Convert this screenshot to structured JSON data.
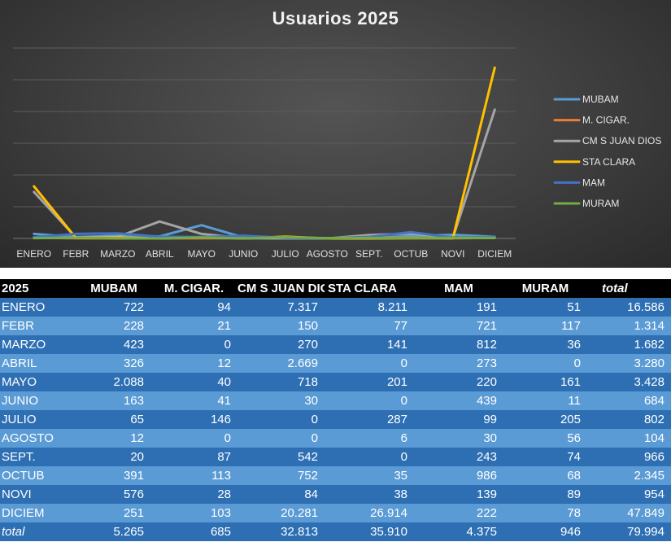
{
  "chart_data": {
    "type": "line",
    "title": "Usuarios 2025",
    "categories": [
      "ENERO",
      "FEBR",
      "MARZO",
      "ABRIL",
      "MAYO",
      "JUNIO",
      "JULIO",
      "AGOSTO",
      "SEPT.",
      "OCTUB",
      "NOVI",
      "DICIEM"
    ],
    "series": [
      {
        "name": "MUBAM",
        "color": "#5b9bd5",
        "values": [
          722,
          228,
          423,
          326,
          2088,
          163,
          65,
          12,
          20,
          391,
          576,
          251
        ]
      },
      {
        "name": "M. CIGAR.",
        "color": "#ed7d31",
        "values": [
          94,
          21,
          0,
          12,
          40,
          41,
          146,
          0,
          87,
          113,
          28,
          103
        ]
      },
      {
        "name": "CM S JUAN DIOS",
        "color": "#a5a5a5",
        "values": [
          7317,
          150,
          270,
          2669,
          718,
          30,
          0,
          0,
          542,
          752,
          84,
          20281
        ]
      },
      {
        "name": "STA CLARA",
        "color": "#ffc000",
        "values": [
          8211,
          77,
          141,
          0,
          201,
          0,
          287,
          6,
          0,
          35,
          38,
          26914
        ]
      },
      {
        "name": "MAM",
        "color": "#4472c4",
        "values": [
          191,
          721,
          812,
          273,
          220,
          439,
          99,
          30,
          243,
          986,
          139,
          222
        ]
      },
      {
        "name": "MURAM",
        "color": "#70ad47",
        "values": [
          51,
          117,
          36,
          0,
          161,
          11,
          205,
          56,
          74,
          68,
          89,
          78
        ]
      }
    ],
    "ylim": [
      0,
      30000
    ],
    "grid": true,
    "legend": "right"
  },
  "table": {
    "headers": [
      "2025",
      "MUBAM",
      "M. CIGAR.",
      "CM S JUAN DIOS",
      "STA CLARA",
      "MAM",
      "MURAM",
      "total"
    ],
    "rows": [
      [
        "ENERO",
        "722",
        "94",
        "7.317",
        "8.211",
        "191",
        "51",
        "16.586"
      ],
      [
        "FEBR",
        "228",
        "21",
        "150",
        "77",
        "721",
        "117",
        "1.314"
      ],
      [
        "MARZO",
        "423",
        "0",
        "270",
        "141",
        "812",
        "36",
        "1.682"
      ],
      [
        "ABRIL",
        "326",
        "12",
        "2.669",
        "0",
        "273",
        "0",
        "3.280"
      ],
      [
        "MAYO",
        "2.088",
        "40",
        "718",
        "201",
        "220",
        "161",
        "3.428"
      ],
      [
        "JUNIO",
        "163",
        "41",
        "30",
        "0",
        "439",
        "11",
        "684"
      ],
      [
        "JULIO",
        "65",
        "146",
        "0",
        "287",
        "99",
        "205",
        "802"
      ],
      [
        "AGOSTO",
        "12",
        "0",
        "0",
        "6",
        "30",
        "56",
        "104"
      ],
      [
        "SEPT.",
        "20",
        "87",
        "542",
        "0",
        "243",
        "74",
        "966"
      ],
      [
        "OCTUB",
        "391",
        "113",
        "752",
        "35",
        "986",
        "68",
        "2.345"
      ],
      [
        "NOVI",
        "576",
        "28",
        "84",
        "38",
        "139",
        "89",
        "954"
      ],
      [
        "DICIEM",
        "251",
        "103",
        "20.281",
        "26.914",
        "222",
        "78",
        "47.849"
      ]
    ],
    "footer": [
      "total",
      "5.265",
      "685",
      "32.813",
      "35.910",
      "4.375",
      "946",
      "79.994"
    ]
  }
}
